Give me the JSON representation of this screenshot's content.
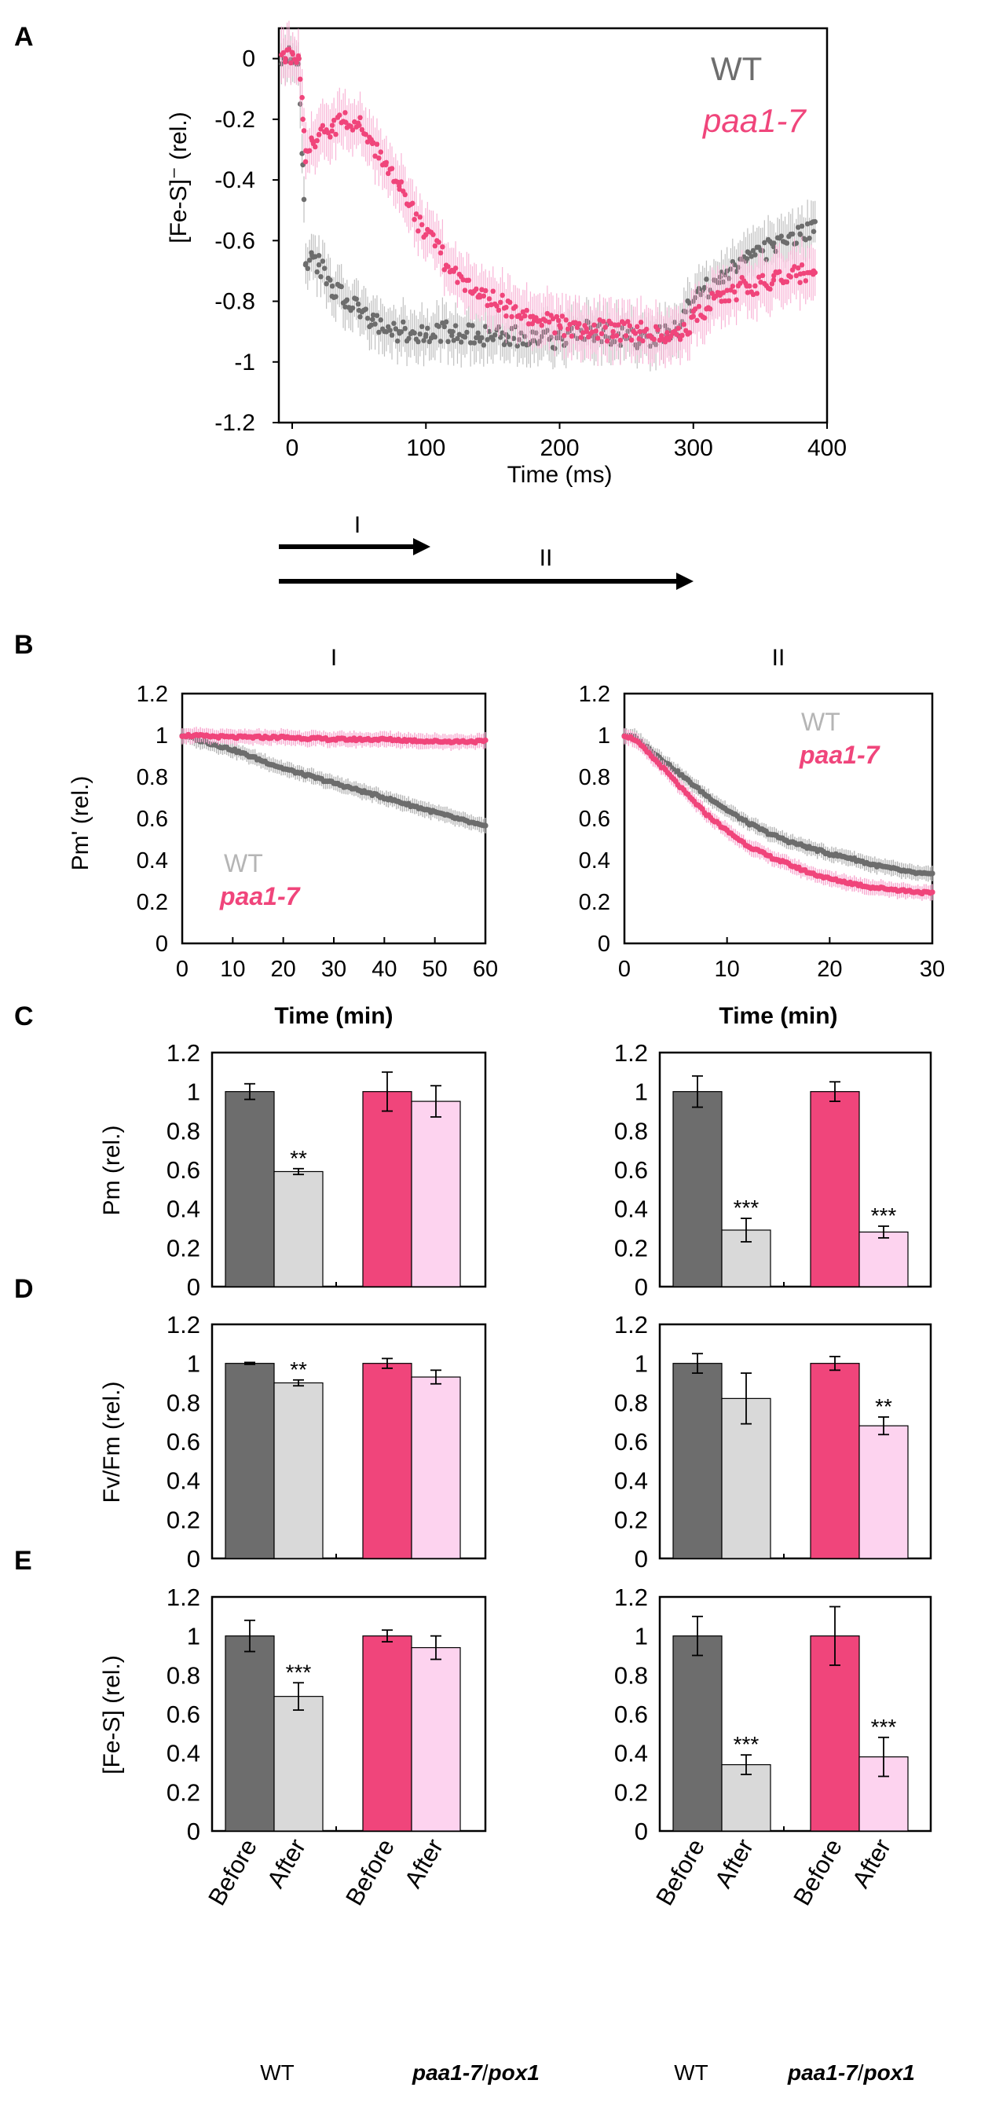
{
  "panel_labels": {
    "A": "A",
    "B": "B",
    "C": "C",
    "D": "D",
    "E": "E"
  },
  "colors": {
    "wt_dark": "#6d6d6d",
    "wt_light": "#b5b5b5",
    "wt_after": "#d9d9d9",
    "paa_dark": "#f0457b",
    "paa_light": "#f7a8cf",
    "paa_after": "#fdd3ef"
  },
  "chart_data": [
    {
      "id": "A",
      "type": "scatter",
      "title": "",
      "xlabel": "Time (ms)",
      "ylabel": "[Fe-S]⁻ (rel.)",
      "xlim": [
        -10,
        400
      ],
      "ylim": [
        -1.2,
        0.1
      ],
      "xticks": [
        "0",
        "100",
        "200",
        "300",
        "400"
      ],
      "yticks": [
        "0",
        "-0.2",
        "-0.4",
        "-0.6",
        "-0.8",
        "-1",
        "-1.2"
      ],
      "legend": [
        "WT",
        "paa1-7"
      ],
      "legend_position": "top-right",
      "series": [
        {
          "name": "WT",
          "x": [
            -5,
            0,
            5,
            8,
            10,
            15,
            20,
            30,
            40,
            50,
            60,
            80,
            100,
            120,
            140,
            160,
            180,
            200,
            220,
            240,
            260,
            280,
            290,
            300,
            320,
            340,
            360,
            380,
            390
          ],
          "y": [
            0.0,
            0.02,
            0.0,
            -0.35,
            -0.68,
            -0.65,
            -0.68,
            -0.75,
            -0.8,
            -0.83,
            -0.86,
            -0.9,
            -0.91,
            -0.9,
            -0.92,
            -0.91,
            -0.93,
            -0.92,
            -0.9,
            -0.91,
            -0.92,
            -0.91,
            -0.88,
            -0.8,
            -0.72,
            -0.66,
            -0.62,
            -0.58,
            -0.57
          ]
        },
        {
          "name": "paa1-7",
          "x": [
            -5,
            0,
            5,
            8,
            10,
            15,
            20,
            30,
            40,
            50,
            60,
            70,
            80,
            100,
            120,
            140,
            160,
            180,
            200,
            220,
            240,
            260,
            280,
            290,
            300,
            320,
            340,
            360,
            380,
            390
          ],
          "y": [
            0.0,
            0.02,
            0.0,
            -0.2,
            -0.34,
            -0.27,
            -0.25,
            -0.22,
            -0.21,
            -0.22,
            -0.28,
            -0.35,
            -0.42,
            -0.58,
            -0.7,
            -0.78,
            -0.82,
            -0.85,
            -0.88,
            -0.89,
            -0.9,
            -0.9,
            -0.92,
            -0.92,
            -0.85,
            -0.78,
            -0.75,
            -0.73,
            -0.71,
            -0.7
          ]
        }
      ]
    },
    {
      "id": "B-I",
      "type": "line",
      "title": "I",
      "xlabel": "Time (min)",
      "ylabel": "Pm' (rel.)",
      "xlim": [
        0,
        60
      ],
      "ylim": [
        0,
        1.2
      ],
      "xticks": [
        "0",
        "10",
        "20",
        "30",
        "40",
        "50",
        "60"
      ],
      "yticks": [
        "0",
        "0.2",
        "0.4",
        "0.6",
        "0.8",
        "1",
        "1.2"
      ],
      "legend": [
        "WT",
        "paa1-7"
      ],
      "legend_position": "bottom-left",
      "series": [
        {
          "name": "WT",
          "x": [
            0,
            10,
            20,
            30,
            40,
            50,
            60
          ],
          "y": [
            1.0,
            0.93,
            0.84,
            0.77,
            0.7,
            0.63,
            0.56
          ]
        },
        {
          "name": "paa1-7",
          "x": [
            0,
            10,
            20,
            30,
            40,
            50,
            60
          ],
          "y": [
            1.0,
            0.99,
            0.99,
            0.98,
            0.98,
            0.97,
            0.97
          ]
        }
      ]
    },
    {
      "id": "B-II",
      "type": "line",
      "title": "II",
      "xlabel": "Time (min)",
      "ylabel": "",
      "xlim": [
        0,
        30
      ],
      "ylim": [
        0,
        1.2
      ],
      "xticks": [
        "0",
        "10",
        "20",
        "30"
      ],
      "yticks": [
        "0",
        "0.2",
        "0.4",
        "0.6",
        "0.8",
        "1",
        "1.2"
      ],
      "legend": [
        "WT",
        "paa1-7"
      ],
      "legend_position": "top-right",
      "series": [
        {
          "name": "WT",
          "x": [
            0,
            1,
            2,
            4,
            6,
            8,
            10,
            12,
            14,
            16,
            18,
            20,
            22,
            24,
            26,
            28,
            30
          ],
          "y": [
            1.0,
            0.99,
            0.95,
            0.87,
            0.79,
            0.71,
            0.64,
            0.58,
            0.53,
            0.49,
            0.46,
            0.43,
            0.41,
            0.38,
            0.36,
            0.34,
            0.33
          ]
        },
        {
          "name": "paa1-7",
          "x": [
            0,
            1,
            2,
            4,
            6,
            8,
            10,
            12,
            14,
            16,
            18,
            20,
            22,
            24,
            26,
            28,
            30
          ],
          "y": [
            1.0,
            0.98,
            0.93,
            0.83,
            0.72,
            0.62,
            0.54,
            0.47,
            0.42,
            0.38,
            0.34,
            0.31,
            0.29,
            0.27,
            0.26,
            0.25,
            0.24
          ]
        }
      ]
    },
    {
      "id": "C-I",
      "type": "bar",
      "ylabel": "Pm (rel.)",
      "ylim": [
        0,
        1.2
      ],
      "yticks": [
        "0",
        "0.2",
        "0.4",
        "0.6",
        "0.8",
        "1",
        "1.2"
      ],
      "categories": [
        "Before",
        "After",
        "Before",
        "After"
      ],
      "values": [
        1.0,
        0.59,
        1.0,
        0.95
      ],
      "errors": [
        0.04,
        0.015,
        0.1,
        0.08
      ],
      "significance": [
        "",
        "**",
        "",
        ""
      ]
    },
    {
      "id": "C-II",
      "type": "bar",
      "ylabel": "",
      "ylim": [
        0,
        1.2
      ],
      "yticks": [
        "0",
        "0.2",
        "0.4",
        "0.6",
        "0.8",
        "1",
        "1.2"
      ],
      "categories": [
        "Before",
        "After",
        "Before",
        "After"
      ],
      "values": [
        1.0,
        0.29,
        1.0,
        0.28
      ],
      "errors": [
        0.08,
        0.06,
        0.05,
        0.03
      ],
      "significance": [
        "",
        "***",
        "",
        "***"
      ]
    },
    {
      "id": "D-I",
      "type": "bar",
      "ylabel": "Fv/Fm (rel.)",
      "ylim": [
        0,
        1.2
      ],
      "yticks": [
        "0",
        "0.2",
        "0.4",
        "0.6",
        "0.8",
        "1",
        "1.2"
      ],
      "categories": [
        "Before",
        "After",
        "Before",
        "After"
      ],
      "values": [
        1.0,
        0.9,
        1.0,
        0.93
      ],
      "errors": [
        0.005,
        0.015,
        0.025,
        0.035
      ],
      "significance": [
        "",
        "**",
        "",
        ""
      ]
    },
    {
      "id": "D-II",
      "type": "bar",
      "ylabel": "",
      "ylim": [
        0,
        1.2
      ],
      "yticks": [
        "0",
        "0.2",
        "0.4",
        "0.6",
        "0.8",
        "1",
        "1.2"
      ],
      "categories": [
        "Before",
        "After",
        "Before",
        "After"
      ],
      "values": [
        1.0,
        0.82,
        1.0,
        0.68
      ],
      "errors": [
        0.05,
        0.13,
        0.035,
        0.045
      ],
      "significance": [
        "",
        "",
        "",
        "**"
      ]
    },
    {
      "id": "E-I",
      "type": "bar",
      "ylabel": "[Fe-S] (rel.)",
      "ylim": [
        0,
        1.2
      ],
      "yticks": [
        "0",
        "0.2",
        "0.4",
        "0.6",
        "0.8",
        "1",
        "1.2"
      ],
      "categories": [
        "Before",
        "After",
        "Before",
        "After"
      ],
      "values": [
        1.0,
        0.69,
        1.0,
        0.94
      ],
      "errors": [
        0.08,
        0.07,
        0.03,
        0.06
      ],
      "significance": [
        "",
        "***",
        "",
        ""
      ]
    },
    {
      "id": "E-II",
      "type": "bar",
      "ylabel": "",
      "ylim": [
        0,
        1.2
      ],
      "yticks": [
        "0",
        "0.2",
        "0.4",
        "0.6",
        "0.8",
        "1",
        "1.2"
      ],
      "categories": [
        "Before",
        "After",
        "Before",
        "After"
      ],
      "values": [
        1.0,
        0.34,
        1.0,
        0.38
      ],
      "errors": [
        0.1,
        0.05,
        0.15,
        0.1
      ],
      "significance": [
        "",
        "***",
        "",
        "***"
      ]
    }
  ],
  "arrows": {
    "I": "I",
    "II": "II"
  },
  "group_labels": [
    "WT",
    "paa1-7",
    "/",
    "pox1"
  ]
}
